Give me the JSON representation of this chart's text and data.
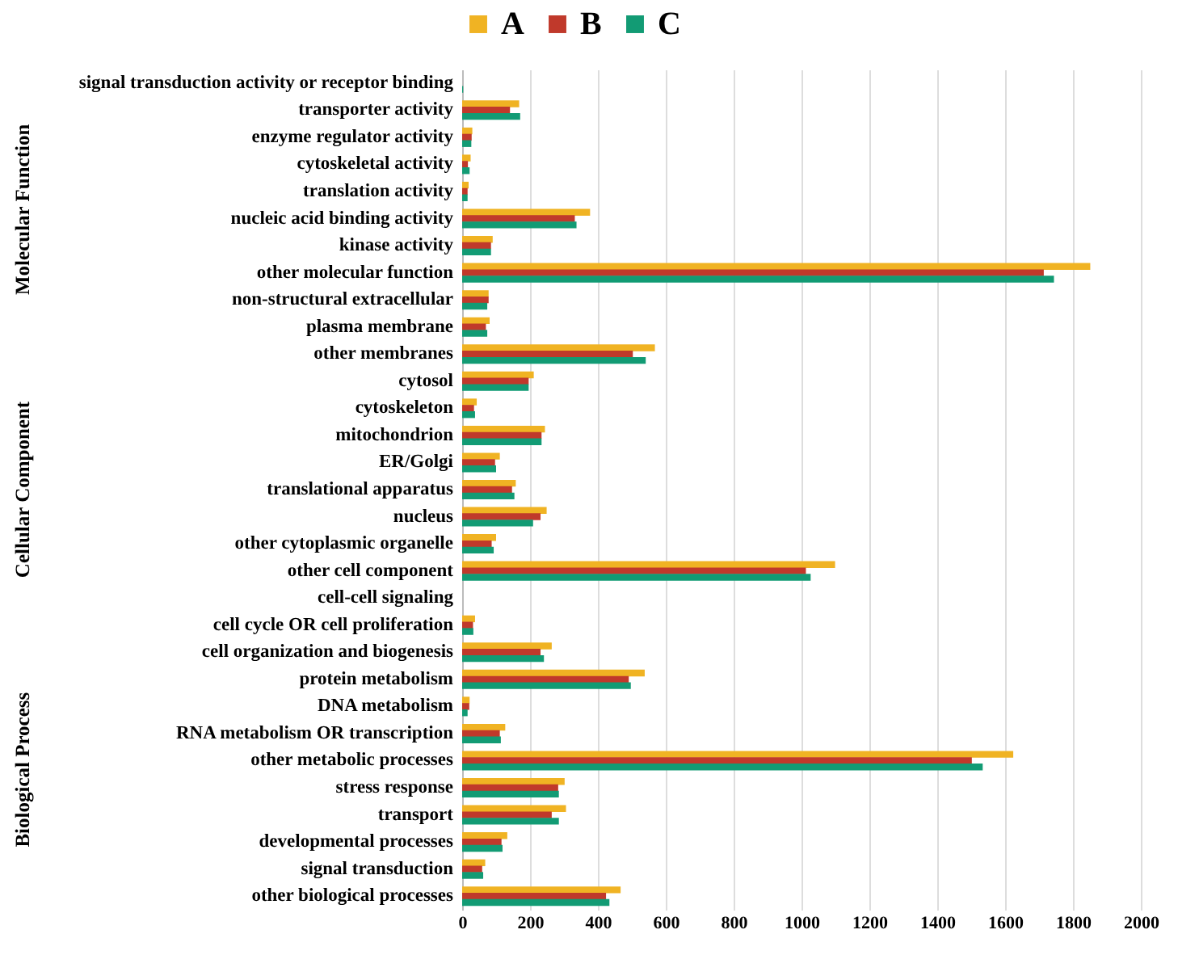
{
  "chart_data": {
    "type": "bar",
    "orientation": "horizontal",
    "categories": [
      "signal transduction activity or receptor binding",
      "transporter activity",
      "enzyme regulator activity",
      "cytoskeletal activity",
      "translation activity",
      "nucleic acid binding activity",
      "kinase activity",
      "other molecular function",
      "non-structural extracellular",
      "plasma membrane",
      "other membranes",
      "cytosol",
      "cytoskeleton",
      "mitochondrion",
      "ER/Golgi",
      "translational apparatus",
      "nucleus",
      "other cytoplasmic organelle",
      "other cell component",
      "cell-cell signaling",
      "cell cycle OR cell proliferation",
      "cell organization and biogenesis",
      "protein metabolism",
      "DNA metabolism",
      "RNA metabolism OR transcription",
      "other metabolic processes",
      "stress response",
      "transport",
      "developmental processes",
      "signal transduction",
      "other biological processes"
    ],
    "series": [
      {
        "name": "A",
        "color": "#f0b323",
        "values": [
          0,
          168,
          30,
          25,
          19,
          377,
          90,
          1851,
          78,
          81,
          568,
          211,
          43,
          244,
          111,
          158,
          249,
          100,
          1099,
          0,
          38,
          264,
          538,
          22,
          127,
          1624,
          302,
          306,
          133,
          68,
          467
        ]
      },
      {
        "name": "B",
        "color": "#c0392b",
        "values": [
          0,
          141,
          28,
          17,
          16,
          332,
          85,
          1714,
          78,
          70,
          503,
          196,
          35,
          234,
          97,
          147,
          231,
          87,
          1013,
          0,
          32,
          231,
          491,
          21,
          111,
          1502,
          283,
          264,
          116,
          59,
          424
        ]
      },
      {
        "name": "C",
        "color": "#129b74",
        "values": [
          3,
          171,
          27,
          22,
          16,
          337,
          85,
          1744,
          74,
          74,
          541,
          196,
          38,
          234,
          100,
          154,
          209,
          93,
          1027,
          0,
          33,
          241,
          497,
          16,
          114,
          1534,
          285,
          285,
          119,
          62,
          434
        ]
      }
    ],
    "xlim": [
      0,
      2000
    ],
    "xticks": [
      0,
      200,
      400,
      600,
      800,
      1000,
      1200,
      1400,
      1600,
      1800,
      2000
    ],
    "grid": "x",
    "legend": "top",
    "annotations": [
      "Molecular Function",
      "Cellular Component",
      "Biological Process"
    ]
  }
}
